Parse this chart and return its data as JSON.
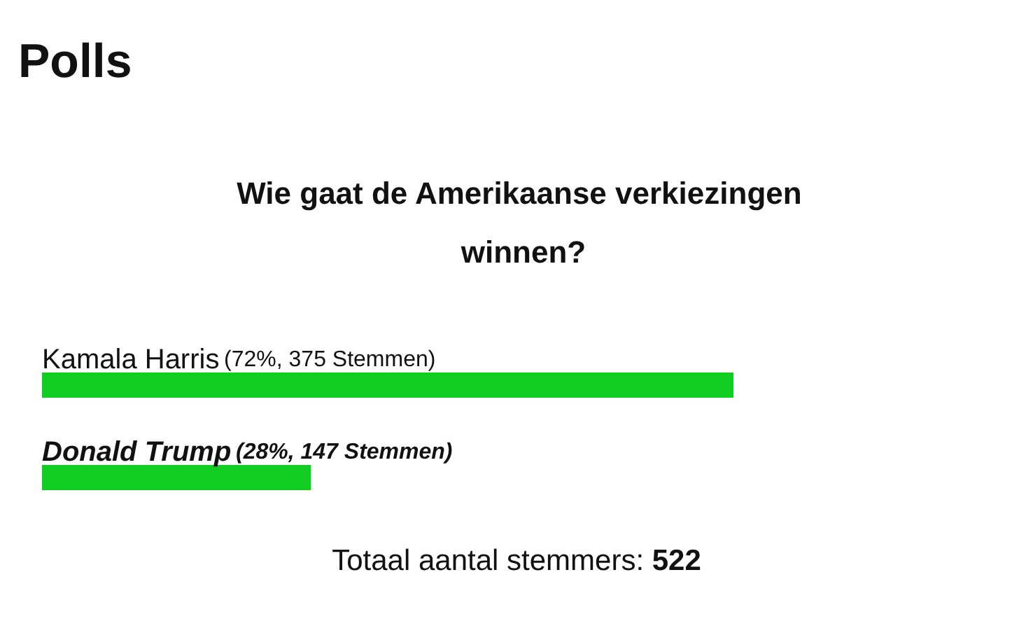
{
  "chart_data": {
    "type": "bar",
    "orientation": "horizontal",
    "title": "Polls",
    "subtitle": "Wie gaat de Amerikaanse verkiezingen winnen?",
    "categories": [
      "Kamala Harris",
      "Donald Trump"
    ],
    "values": [
      72,
      28
    ],
    "value_labels": [
      "(72%, 375 Stemmen)",
      "(28%, 147 Stemmen)"
    ],
    "color": "#11cc22",
    "annotations": [
      "Totaal aantal stemmers: 522"
    ]
  }
}
